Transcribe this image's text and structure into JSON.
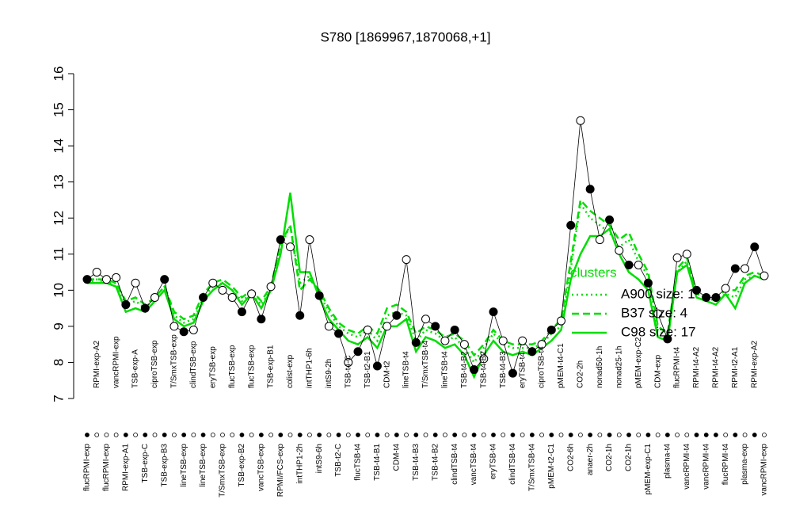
{
  "chart_data": {
    "type": "line",
    "title": "S780 [1869967,1870068,+1]",
    "categories": [
      "flucRPMI-exp",
      "RPMI-exp-A2",
      "flucRPMI-exp",
      "vancRPMI-exp",
      "RPMI-exp-A1",
      "TSB-exp-A",
      "TSB-exp-C",
      "ciproTSB-exp",
      "TSB-exp-B3",
      "T/SmxTSB-exp",
      "lineTSB-exp",
      "clindTSB-exp",
      "lineTSB-exp",
      "eryTSB-exp",
      "T/SmxTSB-exp",
      "flucTSB-exp",
      "TSB-exp-B2",
      "flucTSB-exp",
      "vancTSB-exp",
      "TSB-exp-B1",
      "RPMI/FCS-exp",
      "colist-exp",
      "intTHP1-2h",
      "intTHP1-6h",
      "intS9-6h",
      "intS9-2h",
      "TSB-t2-C",
      "TSB-t4-C",
      "flucTSB-t4",
      "TSB-t2-B1",
      "TSB-t4-B1",
      "CDM-t2",
      "CDM-t4",
      "lineTSB-t4",
      "TSB-t4-B3",
      "T/SmxTSB-t4",
      "TSB-t4-B2",
      "lineTSB-t4",
      "clindTSB-t4",
      "TSB-t4-B2",
      "vancTSB-t4",
      "TSB-t4-B2",
      "eryTSB-t4",
      "TSB-t4-B3",
      "clindTSB-t4",
      "eryTSB-t4",
      "T/SmxTSB-t4",
      "ciproTSB-t4",
      "pMEM-t2-C1",
      "pMEM-t4-C1",
      "CO2-6h",
      "CO2-2h",
      "anaer-2h",
      "nonad50-1h",
      "CO2-1h",
      "nonad25-1h",
      "CO2-1h",
      "pMEM-exp-C2",
      "pMEM-exp-C1",
      "CDM-exp",
      "plasma-t4",
      "flucRPMI-t4",
      "vancRPMI-t4",
      "RPMI-t4-A2",
      "vancRPMI-t4",
      "RPMI-t4-A2",
      "flucRPMI-t4",
      "RPMI-t2-A1",
      "plasma-exp",
      "RPMI-exp-A2",
      "vancRPMI-exp"
    ],
    "values": [
      10.3,
      10.5,
      10.3,
      10.35,
      9.6,
      10.2,
      9.5,
      9.8,
      10.3,
      9.0,
      8.85,
      8.9,
      9.8,
      10.2,
      10.0,
      9.8,
      9.4,
      9.9,
      9.2,
      10.1,
      11.4,
      11.2,
      9.3,
      11.4,
      9.85,
      9.0,
      8.8,
      8.0,
      8.3,
      8.9,
      7.9,
      9.0,
      9.3,
      10.85,
      8.55,
      9.2,
      9.0,
      8.6,
      8.9,
      8.5,
      7.8,
      8.1,
      9.4,
      8.6,
      7.7,
      8.6,
      8.3,
      8.5,
      8.9,
      9.15,
      11.8,
      14.7,
      12.8,
      11.4,
      11.95,
      11.1,
      10.7,
      10.7,
      10.2,
      9.35,
      8.65,
      10.9,
      11.0,
      10.0,
      9.8,
      9.8,
      10.05,
      10.6,
      10.6,
      11.2,
      10.4
    ],
    "point_colors": [
      "black",
      "white",
      "white",
      "white",
      "black",
      "white",
      "black",
      "white",
      "black",
      "white",
      "black",
      "white",
      "black",
      "white",
      "white",
      "white",
      "black",
      "white",
      "black",
      "white",
      "black",
      "white",
      "black",
      "white",
      "black",
      "white",
      "black",
      "white",
      "black",
      "white",
      "black",
      "white",
      "black",
      "white",
      "black",
      "white",
      "black",
      "white",
      "black",
      "white",
      "black",
      "white",
      "black",
      "white",
      "black",
      "white",
      "black",
      "white",
      "black",
      "white",
      "black",
      "white",
      "black",
      "white",
      "black",
      "white",
      "black",
      "white",
      "black",
      "white",
      "black",
      "white",
      "white",
      "black",
      "black",
      "black",
      "white",
      "black",
      "white",
      "black",
      "white"
    ],
    "legend_title": "clusters",
    "series": [
      {
        "name": "A900 size: 1",
        "color": "#00dd00",
        "dash": "dotted",
        "values": [
          10.2,
          10.3,
          10.2,
          10.2,
          9.6,
          9.7,
          9.5,
          9.8,
          10.1,
          9.3,
          9.1,
          9.2,
          9.8,
          10.1,
          10.2,
          10.0,
          9.7,
          9.9,
          9.6,
          10.0,
          11.2,
          11.8,
          10.2,
          10.4,
          9.9,
          9.4,
          9.0,
          8.8,
          8.7,
          8.9,
          8.6,
          9.3,
          9.4,
          9.3,
          8.6,
          8.9,
          8.8,
          8.6,
          8.7,
          8.4,
          8.0,
          8.4,
          8.8,
          8.5,
          8.4,
          8.4,
          8.4,
          8.5,
          8.8,
          9.0,
          10.6,
          12.4,
          12.0,
          11.8,
          11.6,
          11.2,
          11.4,
          10.8,
          10.4,
          8.9,
          8.7,
          10.5,
          10.8,
          9.9,
          9.8,
          9.7,
          9.9,
          9.8,
          10.3,
          10.4,
          10.3
        ]
      },
      {
        "name": "B37 size: 4",
        "color": "#00dd00",
        "dash": "dashed",
        "values": [
          10.3,
          10.3,
          10.3,
          10.2,
          9.7,
          9.8,
          9.6,
          9.8,
          10.1,
          9.4,
          9.2,
          9.3,
          9.9,
          10.2,
          10.3,
          10.1,
          9.8,
          10.0,
          9.7,
          10.1,
          11.3,
          11.8,
          10.0,
          10.3,
          10.0,
          9.5,
          9.1,
          8.9,
          8.8,
          9.0,
          8.8,
          9.5,
          9.6,
          9.4,
          8.8,
          9.0,
          8.9,
          8.7,
          8.8,
          8.6,
          8.2,
          8.5,
          8.9,
          8.6,
          8.5,
          8.5,
          8.5,
          8.6,
          8.9,
          9.2,
          10.8,
          12.5,
          12.2,
          12.0,
          11.8,
          11.4,
          11.6,
          11.0,
          10.5,
          9.0,
          8.8,
          10.6,
          10.9,
          9.9,
          9.8,
          9.8,
          10.0,
          10.0,
          10.4,
          10.5,
          10.4
        ]
      },
      {
        "name": "C98 size: 17",
        "color": "#00dd00",
        "dash": "solid",
        "values": [
          10.2,
          10.2,
          10.2,
          10.1,
          9.4,
          9.5,
          9.4,
          9.7,
          10.0,
          9.2,
          9.0,
          9.1,
          9.7,
          10.0,
          10.2,
          10.0,
          9.6,
          9.9,
          9.5,
          10.0,
          11.0,
          12.7,
          10.5,
          10.5,
          9.8,
          9.2,
          8.9,
          8.6,
          8.5,
          8.7,
          8.4,
          9.0,
          9.0,
          9.2,
          8.3,
          8.7,
          8.6,
          8.4,
          8.5,
          8.2,
          7.6,
          8.2,
          8.6,
          8.3,
          8.2,
          8.3,
          8.2,
          8.4,
          8.6,
          8.9,
          10.3,
          11.0,
          11.5,
          11.5,
          11.7,
          11.0,
          10.5,
          10.3,
          10.0,
          8.7,
          8.6,
          10.5,
          10.7,
          9.8,
          9.7,
          9.6,
          9.9,
          9.5,
          10.2,
          10.4,
          10.3
        ]
      }
    ],
    "ylim": [
      7,
      16
    ],
    "yticks": [
      7,
      8,
      9,
      10,
      11,
      12,
      13,
      14,
      15,
      16
    ]
  }
}
